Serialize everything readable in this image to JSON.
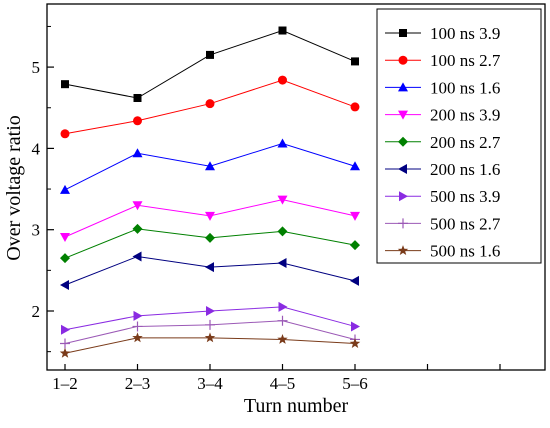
{
  "chart_data": {
    "type": "line",
    "xlabel": "Turn number",
    "ylabel": "Over voltage ratio",
    "categories": [
      "1–2",
      "2–3",
      "3–4",
      "4–5",
      "5–6"
    ],
    "yticks": [
      "2",
      "3",
      "4",
      "5"
    ],
    "ylim": [
      1.3,
      5.8
    ],
    "legend_position": "top-right",
    "grid": false,
    "series": [
      {
        "name": "100 ns 3.9",
        "color": "#000000",
        "marker": "square",
        "values": [
          4.79,
          4.62,
          5.15,
          5.45,
          5.07
        ]
      },
      {
        "name": "100 ns 2.7",
        "color": "#ff0000",
        "marker": "circle",
        "values": [
          4.18,
          4.34,
          4.55,
          4.84,
          4.51
        ]
      },
      {
        "name": "100 ns 1.6",
        "color": "#0000ff",
        "marker": "triangle-up",
        "values": [
          3.49,
          3.94,
          3.78,
          4.06,
          3.78
        ]
      },
      {
        "name": "200 ns 3.9",
        "color": "#ff00ff",
        "marker": "triangle-down",
        "values": [
          2.91,
          3.3,
          3.17,
          3.37,
          3.17
        ]
      },
      {
        "name": "200 ns 2.7",
        "color": "#008000",
        "marker": "diamond",
        "values": [
          2.65,
          3.01,
          2.9,
          2.98,
          2.81
        ]
      },
      {
        "name": "200 ns 1.6",
        "color": "#000080",
        "marker": "triangle-left",
        "values": [
          2.32,
          2.67,
          2.54,
          2.59,
          2.37
        ]
      },
      {
        "name": "500 ns 3.9",
        "color": "#8a2be2",
        "marker": "triangle-right",
        "values": [
          1.77,
          1.94,
          2.0,
          2.05,
          1.81
        ]
      },
      {
        "name": "500 ns 2.7",
        "color": "#9b59b6",
        "marker": "plus",
        "values": [
          1.6,
          1.81,
          1.83,
          1.88,
          1.65
        ]
      },
      {
        "name": "500 ns 1.6",
        "color": "#7a3b1a",
        "marker": "star",
        "values": [
          1.48,
          1.67,
          1.67,
          1.65,
          1.6
        ]
      }
    ]
  }
}
